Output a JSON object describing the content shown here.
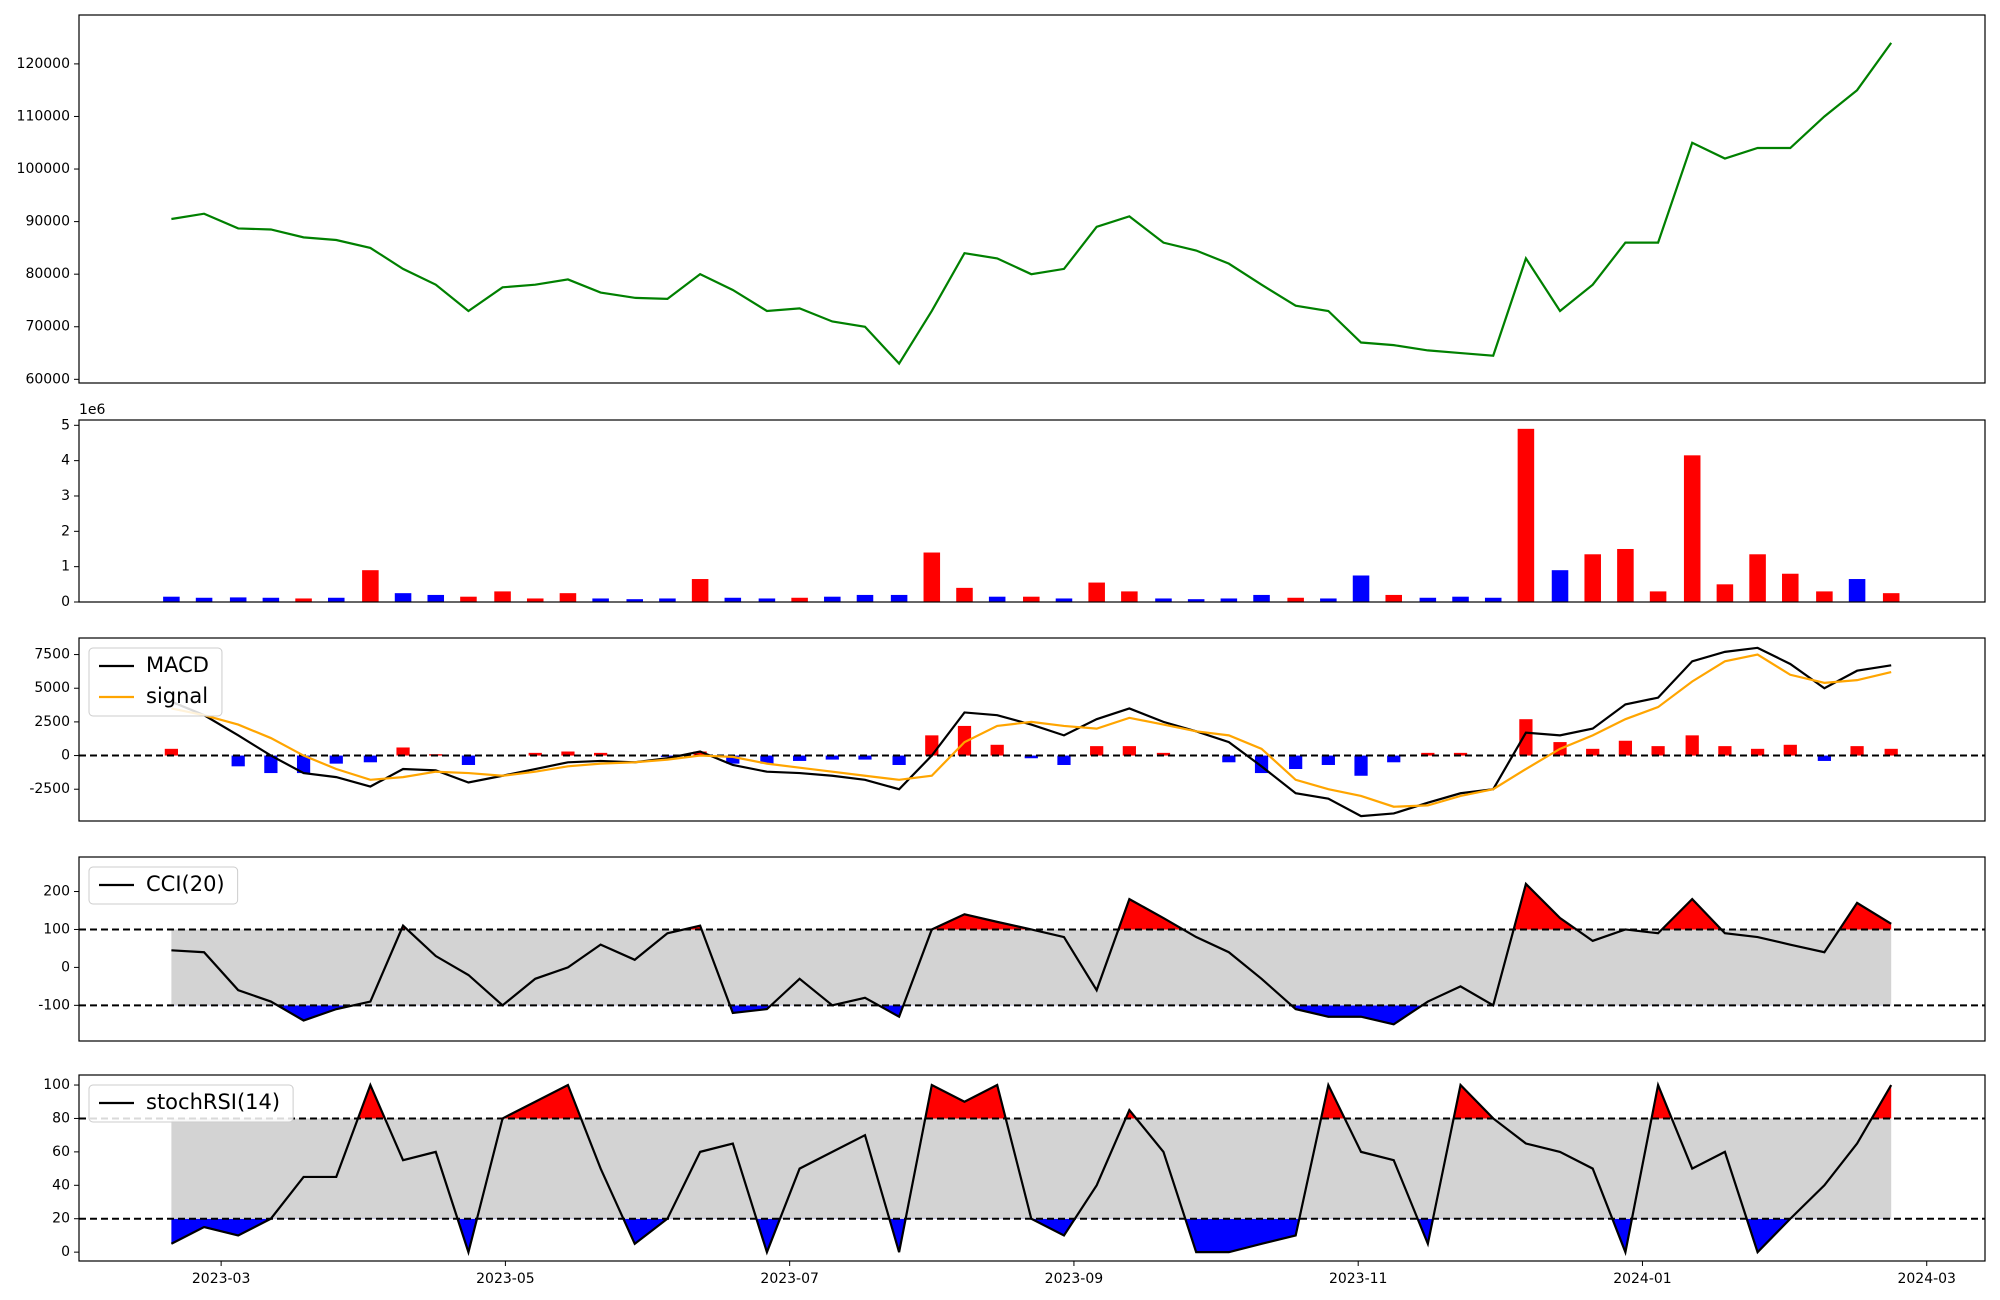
{
  "chart_data": [
    {
      "type": "line",
      "color": "green",
      "x": [
        0.65,
        0.88,
        1.12,
        1.35,
        1.58,
        1.81,
        2.05,
        2.28,
        2.51,
        2.74,
        2.98,
        3.21,
        3.44,
        3.67,
        3.91,
        4.14,
        4.37,
        4.6,
        4.84,
        5.07,
        5.3,
        5.53,
        5.77,
        6.0,
        6.23,
        6.46,
        6.7,
        6.93,
        7.16,
        7.39,
        7.63,
        7.86,
        8.09,
        8.32,
        8.56,
        8.79,
        9.02,
        9.25,
        9.49,
        9.72,
        9.95,
        10.18,
        10.42,
        10.65,
        10.88,
        11.11,
        11.35,
        11.58,
        11.81,
        12.04,
        12.28,
        12.51,
        12.75
      ],
      "values": [
        90500,
        91500,
        88700,
        88500,
        87000,
        86500,
        85000,
        81000,
        78000,
        73000,
        77500,
        78000,
        79000,
        76500,
        75500,
        75300,
        80000,
        77000,
        73000,
        73500,
        71000,
        70000,
        63000,
        73000,
        84000,
        83000,
        80000,
        81000,
        89000,
        91000,
        86000,
        84500,
        82000,
        78000,
        74000,
        73000,
        67000,
        66500,
        65500,
        65000,
        64500,
        83000,
        73000,
        78000,
        86000,
        86000,
        105000,
        102000,
        104000,
        104000,
        110000,
        115000,
        124000
      ],
      "xlim": [
        0,
        13.41
      ],
      "ylim": [
        59300,
        129300
      ],
      "yticks": [
        60000,
        70000,
        80000,
        90000,
        100000,
        110000,
        120000
      ]
    },
    {
      "type": "bar",
      "offset_label": "1e6",
      "x": [
        0.65,
        0.88,
        1.12,
        1.35,
        1.58,
        1.81,
        2.05,
        2.28,
        2.51,
        2.74,
        2.98,
        3.21,
        3.44,
        3.67,
        3.91,
        4.14,
        4.37,
        4.6,
        4.84,
        5.07,
        5.3,
        5.53,
        5.77,
        6.0,
        6.23,
        6.46,
        6.7,
        6.93,
        7.16,
        7.39,
        7.63,
        7.86,
        8.09,
        8.32,
        8.56,
        8.79,
        9.02,
        9.25,
        9.49,
        9.72,
        9.95,
        10.18,
        10.42,
        10.65,
        10.88,
        11.11,
        11.35,
        11.58,
        11.81,
        12.04,
        12.28,
        12.51,
        12.75
      ],
      "values": [
        0.15,
        0.12,
        0.13,
        0.12,
        0.1,
        0.12,
        0.9,
        0.25,
        0.2,
        0.15,
        0.3,
        0.1,
        0.25,
        0.1,
        0.08,
        0.1,
        0.65,
        0.12,
        0.1,
        0.12,
        0.15,
        0.2,
        0.2,
        1.4,
        0.4,
        0.15,
        0.15,
        0.1,
        0.55,
        0.3,
        0.1,
        0.08,
        0.1,
        0.2,
        0.12,
        0.1,
        0.75,
        0.2,
        0.12,
        0.15,
        0.12,
        4.9,
        0.9,
        1.35,
        1.5,
        0.3,
        4.15,
        0.5,
        1.35,
        0.8,
        0.3,
        0.65,
        0.25
      ],
      "colors": [
        "blue",
        "blue",
        "blue",
        "blue",
        "red",
        "blue",
        "red",
        "blue",
        "blue",
        "red",
        "red",
        "red",
        "red",
        "blue",
        "blue",
        "blue",
        "red",
        "blue",
        "blue",
        "red",
        "blue",
        "blue",
        "blue",
        "red",
        "red",
        "blue",
        "red",
        "blue",
        "red",
        "red",
        "blue",
        "blue",
        "blue",
        "blue",
        "red",
        "blue",
        "blue",
        "red",
        "blue",
        "blue",
        "blue",
        "red",
        "blue",
        "red",
        "red",
        "red",
        "red",
        "red",
        "red",
        "red",
        "red",
        "blue",
        "red"
      ],
      "xlim": [
        0,
        13.41
      ],
      "ylim": [
        0,
        5.15
      ],
      "yticks": [
        0,
        1,
        2,
        3,
        4,
        5
      ]
    },
    {
      "type": "line",
      "legend": "upper left",
      "x": [
        0.65,
        0.88,
        1.12,
        1.35,
        1.58,
        1.81,
        2.05,
        2.28,
        2.51,
        2.74,
        2.98,
        3.21,
        3.44,
        3.67,
        3.91,
        4.14,
        4.37,
        4.6,
        4.84,
        5.07,
        5.3,
        5.53,
        5.77,
        6.0,
        6.23,
        6.46,
        6.7,
        6.93,
        7.16,
        7.39,
        7.63,
        7.86,
        8.09,
        8.32,
        8.56,
        8.79,
        9.02,
        9.25,
        9.49,
        9.72,
        9.95,
        10.18,
        10.42,
        10.65,
        10.88,
        11.11,
        11.35,
        11.58,
        11.81,
        12.04,
        12.28,
        12.51,
        12.75
      ],
      "series": [
        {
          "name": "MACD",
          "color": "black",
          "values": [
            4000,
            3000,
            1500,
            0,
            -1300,
            -1600,
            -2300,
            -1000,
            -1100,
            -2000,
            -1500,
            -1000,
            -500,
            -400,
            -500,
            -200,
            300,
            -700,
            -1200,
            -1300,
            -1500,
            -1800,
            -2500,
            0,
            3200,
            3000,
            2300,
            1500,
            2700,
            3500,
            2500,
            1800,
            1000,
            -800,
            -2800,
            -3200,
            -4500,
            -4300,
            -3500,
            -2800,
            -2500,
            1700,
            1500,
            2000,
            3800,
            4300,
            7000,
            7700,
            8000,
            6800,
            5000,
            6300,
            6700
          ]
        },
        {
          "name": "signal",
          "color": "orange",
          "values": [
            3500,
            3000,
            2300,
            1300,
            0,
            -1000,
            -1800,
            -1600,
            -1200,
            -1300,
            -1500,
            -1200,
            -800,
            -600,
            -500,
            -300,
            0,
            -100,
            -600,
            -900,
            -1200,
            -1500,
            -1800,
            -1500,
            1000,
            2200,
            2500,
            2200,
            2000,
            2800,
            2300,
            1800,
            1500,
            500,
            -1800,
            -2500,
            -3000,
            -3800,
            -3700,
            -3000,
            -2500,
            -1000,
            500,
            1500,
            2700,
            3600,
            5500,
            7000,
            7500,
            6000,
            5400,
            5600,
            6200
          ]
        }
      ],
      "histogram": {
        "up_color": "red",
        "down_color": "blue",
        "values": [
          500,
          0,
          -800,
          -1300,
          -1300,
          -600,
          -500,
          600,
          100,
          -700,
          0,
          200,
          300,
          200,
          0,
          -100,
          300,
          -600,
          -600,
          -400,
          -300,
          -300,
          -700,
          1500,
          2200,
          800,
          -200,
          -700,
          700,
          700,
          200,
          0,
          -500,
          -1300,
          -1000,
          -700,
          -1500,
          -500,
          200,
          200,
          0,
          2700,
          1000,
          500,
          1100,
          700,
          1500,
          700,
          500,
          800,
          -400,
          700,
          500
        ]
      },
      "levels": [
        0
      ],
      "xlim": [
        0,
        13.41
      ],
      "ylim": [
        -4860,
        8730
      ],
      "yticks": [
        -2500,
        0,
        2500,
        5000,
        7500
      ]
    },
    {
      "type": "line",
      "legend": "upper left",
      "x": [
        0.65,
        0.88,
        1.12,
        1.35,
        1.58,
        1.81,
        2.05,
        2.28,
        2.51,
        2.74,
        2.98,
        3.21,
        3.44,
        3.67,
        3.91,
        4.14,
        4.37,
        4.6,
        4.84,
        5.07,
        5.3,
        5.53,
        5.77,
        6.0,
        6.23,
        6.46,
        6.7,
        6.93,
        7.16,
        7.39,
        7.63,
        7.86,
        8.09,
        8.32,
        8.56,
        8.79,
        9.02,
        9.25,
        9.49,
        9.72,
        9.95,
        10.18,
        10.42,
        10.65,
        10.88,
        11.11,
        11.35,
        11.58,
        11.81,
        12.04,
        12.28,
        12.51,
        12.75
      ],
      "series": [
        {
          "name": "CCI(20)",
          "color": "black",
          "values": [
            45,
            40,
            -60,
            -90,
            -140,
            -110,
            -90,
            110,
            30,
            -20,
            -100,
            -30,
            0,
            60,
            20,
            90,
            110,
            -120,
            -110,
            -30,
            -100,
            -80,
            -130,
            100,
            140,
            120,
            100,
            80,
            -60,
            180,
            130,
            80,
            40,
            -30,
            -110,
            -130,
            -130,
            -150,
            -90,
            -50,
            -100,
            220,
            130,
            70,
            100,
            90,
            180,
            90,
            80,
            60,
            40,
            170,
            115
          ]
        }
      ],
      "levels": [
        -100,
        100
      ],
      "fill": {
        "band": "lightgray",
        "above": "red",
        "below": "blue"
      },
      "xlim": [
        0,
        13.41
      ],
      "ylim": [
        -194,
        291
      ],
      "yticks": [
        -100,
        0,
        100,
        200
      ]
    },
    {
      "type": "line",
      "legend": "upper left",
      "x": [
        0.65,
        0.88,
        1.12,
        1.35,
        1.58,
        1.81,
        2.05,
        2.28,
        2.51,
        2.74,
        2.98,
        3.21,
        3.44,
        3.67,
        3.91,
        4.14,
        4.37,
        4.6,
        4.84,
        5.07,
        5.3,
        5.53,
        5.77,
        6.0,
        6.23,
        6.46,
        6.7,
        6.93,
        7.16,
        7.39,
        7.63,
        7.86,
        8.09,
        8.32,
        8.56,
        8.79,
        9.02,
        9.25,
        9.49,
        9.72,
        9.95,
        10.18,
        10.42,
        10.65,
        10.88,
        11.11,
        11.35,
        11.58,
        11.81,
        12.04,
        12.28,
        12.51,
        12.75
      ],
      "series": [
        {
          "name": "stochRSI(14)",
          "color": "black",
          "values": [
            5,
            15,
            10,
            20,
            45,
            45,
            100,
            55,
            60,
            0,
            80,
            90,
            100,
            50,
            5,
            20,
            60,
            65,
            0,
            50,
            60,
            70,
            0,
            100,
            90,
            100,
            20,
            10,
            40,
            85,
            60,
            0,
            0,
            5,
            10,
            100,
            60,
            55,
            5,
            100,
            80,
            65,
            60,
            50,
            0,
            100,
            50,
            60,
            0,
            20,
            40,
            65,
            100
          ]
        }
      ],
      "levels": [
        20,
        80
      ],
      "fill": {
        "band": "lightgray",
        "above": "red",
        "below": "blue"
      },
      "xlim": [
        0,
        13.41
      ],
      "ylim": [
        -5.3,
        106
      ],
      "yticks": [
        0,
        20,
        40,
        60,
        80,
        100
      ],
      "xticks": [
        {
          "value": 1,
          "label": "2023-03"
        },
        {
          "value": 3,
          "label": "2023-05"
        },
        {
          "value": 5,
          "label": "2023-07"
        },
        {
          "value": 7,
          "label": "2023-09"
        },
        {
          "value": 9,
          "label": "2023-11"
        },
        {
          "value": 11,
          "label": "2024-01"
        },
        {
          "value": 13,
          "label": "2024-03"
        }
      ]
    }
  ]
}
